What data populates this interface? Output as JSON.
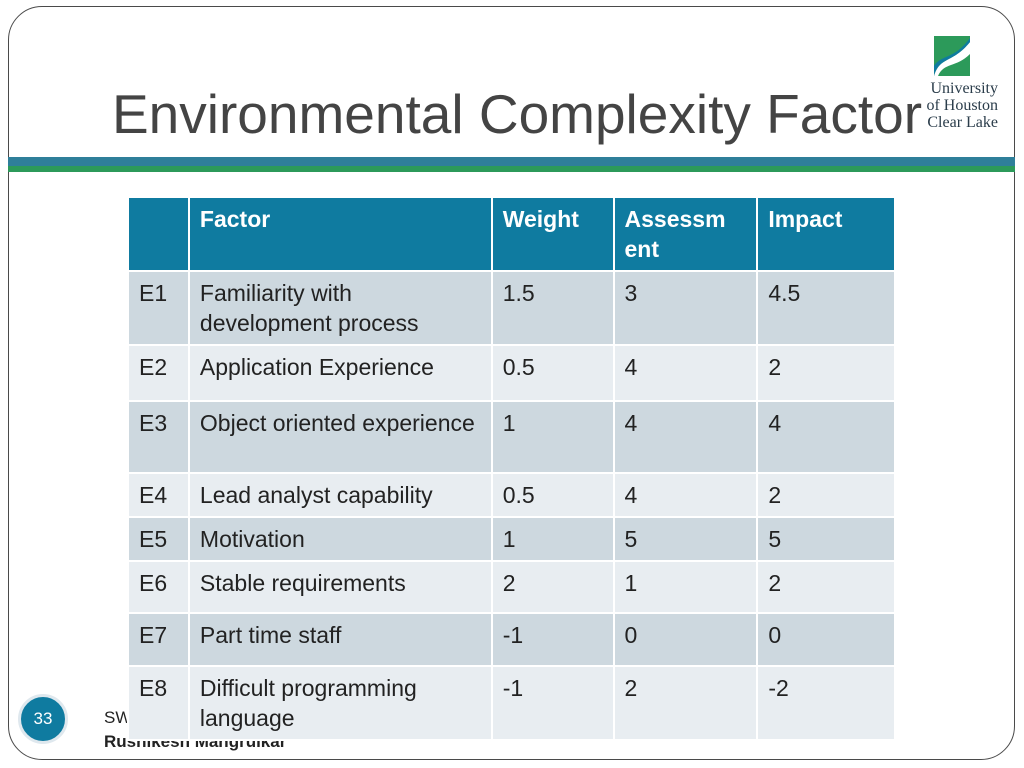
{
  "slide": {
    "title": "Environmental Complexity Factor",
    "number": "33",
    "footer_line1": "SW",
    "author": "Rushikesh Mangrulkar"
  },
  "logo": {
    "line1": "University",
    "line2": "of Houston",
    "line3": "Clear Lake",
    "colors": {
      "mark_blue": "#0f7ba0",
      "mark_green": "#2c9a5a"
    }
  },
  "table": {
    "headers": [
      "",
      "Factor",
      "Weight",
      "Assessm ent",
      "Impact"
    ],
    "rows": [
      {
        "id": "E1",
        "factor": "Familiarity with development process",
        "weight": "1.5",
        "assessment": "3",
        "impact": "4.5"
      },
      {
        "id": "E2",
        "factor": "Application Experience",
        "weight": "0.5",
        "assessment": "4",
        "impact": "2"
      },
      {
        "id": "E3",
        "factor": "Object oriented experience",
        "weight": "1",
        "assessment": "4",
        "impact": "4"
      },
      {
        "id": "E4",
        "factor": "Lead analyst capability",
        "weight": "0.5",
        "assessment": "4",
        "impact": "2"
      },
      {
        "id": "E5",
        "factor": "Motivation",
        "weight": "1",
        "assessment": "5",
        "impact": "5"
      },
      {
        "id": "E6",
        "factor": "Stable requirements",
        "weight": "2",
        "assessment": "1",
        "impact": "2"
      },
      {
        "id": "E7",
        "factor": "Part time staff",
        "weight": "-1",
        "assessment": "0",
        "impact": "0"
      },
      {
        "id": "E8",
        "factor": "Difficult programming language",
        "weight": "-1",
        "assessment": "2",
        "impact": "-2"
      }
    ]
  },
  "colors": {
    "header_bg": "#0f7ba0",
    "row_dark": "#cdd8df",
    "row_light": "#e8edf1",
    "band_blue": "#2f7f9a",
    "band_green": "#2c9a5a"
  }
}
